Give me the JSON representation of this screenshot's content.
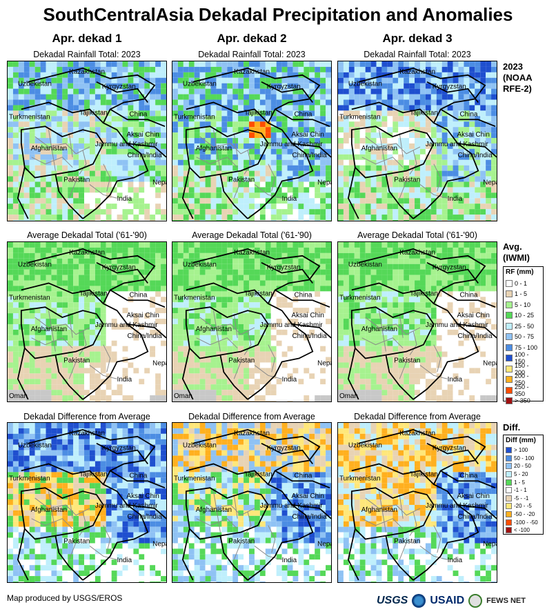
{
  "title": "SouthCentralAsia Dekadal Precipitation and Anomalies",
  "columns": [
    "Apr. dekad 1",
    "Apr. dekad 2",
    "Apr. dekad 3"
  ],
  "rows": [
    {
      "panel_label": "Dekadal Rainfall Total: 2023",
      "row_label": [
        "2023",
        "(NOAA",
        "RFE-2)"
      ]
    },
    {
      "panel_label": "Average Dekadal Total ('61-'90)",
      "row_label": [
        "Avg.",
        "(IWMI)"
      ]
    },
    {
      "panel_label": "Dekadal Difference from Average",
      "row_label": [
        "Diff."
      ]
    }
  ],
  "place_labels": [
    "Kazakhstan",
    "Uzbekistan",
    "Kyrgyzstan",
    "Turkmenistan",
    "Tajikistan",
    "China",
    "Aksai Chin",
    "Jammu and Kashmir",
    "China/India",
    "Afghanistan",
    "Pakistan",
    "Nepal",
    "India",
    "Oman"
  ],
  "rf_legend": {
    "title": "RF (mm)",
    "items": [
      {
        "label": "0 - 1",
        "color": "#ffffff"
      },
      {
        "label": "1 - 5",
        "color": "#e8d3b4"
      },
      {
        "label": "5 - 10",
        "color": "#a6f28f"
      },
      {
        "label": "10 - 25",
        "color": "#55d858"
      },
      {
        "label": "25 - 50",
        "color": "#bfeffc"
      },
      {
        "label": "50 - 75",
        "color": "#8fc2f4"
      },
      {
        "label": "75 - 100",
        "color": "#4c8de3"
      },
      {
        "label": "100 - 150",
        "color": "#1f4fcf"
      },
      {
        "label": "150 - 200",
        "color": "#ffe77a"
      },
      {
        "label": "200 - 250",
        "color": "#ffb01f"
      },
      {
        "label": "250 - 350",
        "color": "#ff4d00"
      },
      {
        "label": "> 350",
        "color": "#a01010"
      }
    ]
  },
  "diff_legend": {
    "title": "Diff (mm)",
    "items": [
      {
        "label": "> 100",
        "color": "#1f4fcf"
      },
      {
        "label": "50 - 100",
        "color": "#4c8de3"
      },
      {
        "label": "20 - 50",
        "color": "#8fc2f4"
      },
      {
        "label": "5 - 20",
        "color": "#bfeffc"
      },
      {
        "label": "1 - 5",
        "color": "#55d858"
      },
      {
        "label": "-1 - 1",
        "color": "#ffffff"
      },
      {
        "label": "-5 - -1",
        "color": "#e8d3b4"
      },
      {
        "label": "-20 - -5",
        "color": "#ffe77a"
      },
      {
        "label": "-50 - -20",
        "color": "#ffb01f"
      },
      {
        "label": "-100 - -50",
        "color": "#ff4d00"
      },
      {
        "label": "< -100",
        "color": "#a01010"
      }
    ]
  },
  "footer": "Map produced by USGS/EROS",
  "logos": {
    "usgs": "USGS",
    "usaid": "USAID",
    "fews": "FEWS NET"
  }
}
